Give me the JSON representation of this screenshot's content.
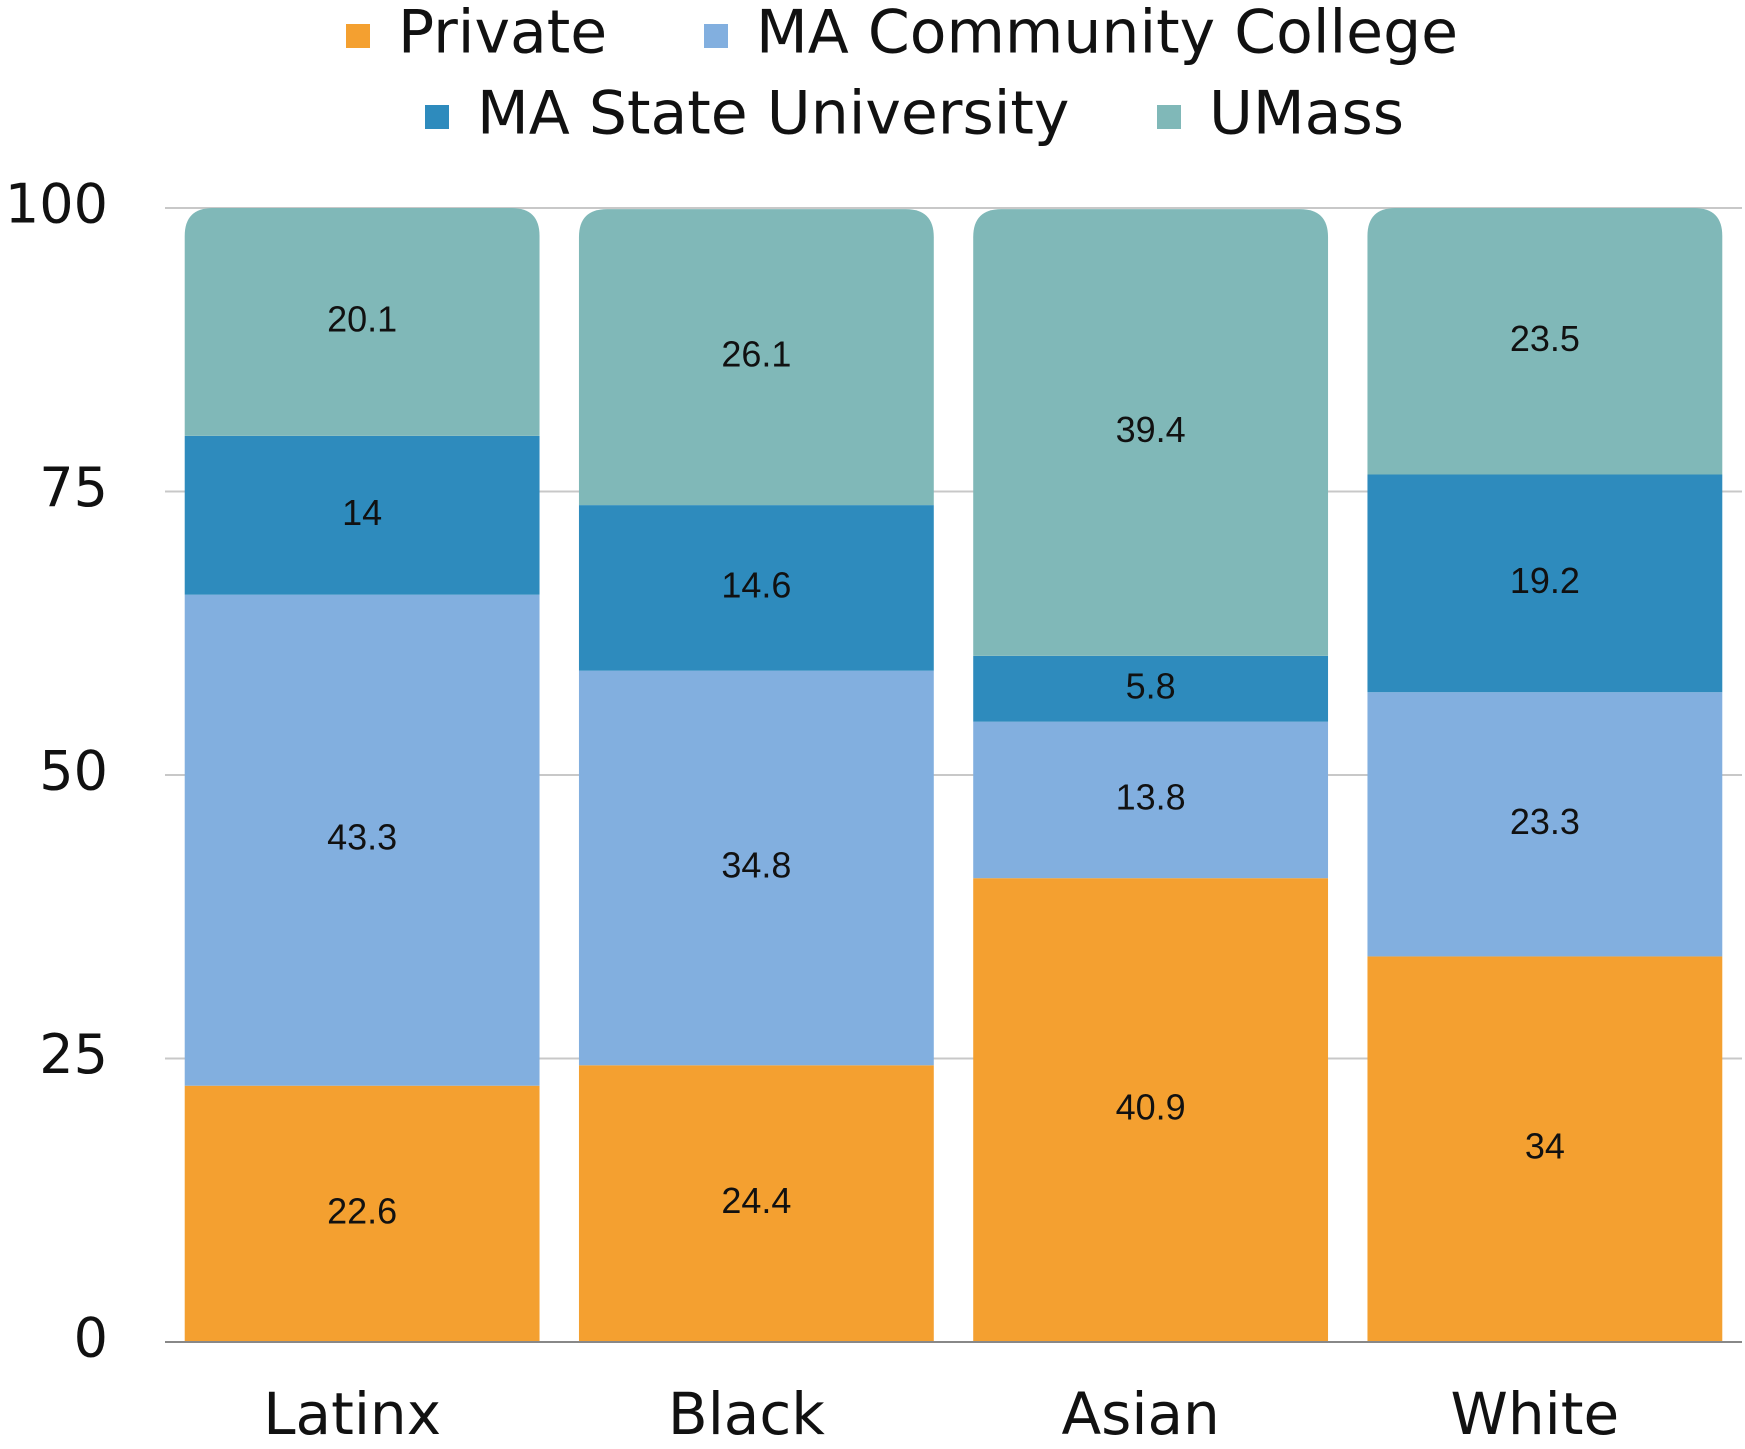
{
  "chart_data": {
    "type": "stacked_bar",
    "categories": [
      "Latinx",
      "Black",
      "Asian",
      "White"
    ],
    "series": [
      {
        "name": "Private",
        "color": "#f4a030",
        "values": [
          22.6,
          24.4,
          40.9,
          34
        ]
      },
      {
        "name": "MA Community College",
        "color": "#82afdf",
        "values": [
          43.3,
          34.8,
          13.8,
          23.3
        ]
      },
      {
        "name": "MA State University",
        "color": "#2e8bbd",
        "values": [
          14,
          14.6,
          5.8,
          19.2
        ]
      },
      {
        "name": "UMass",
        "color": "#80b8b8",
        "values": [
          20.1,
          26.1,
          39.4,
          23.5
        ]
      }
    ],
    "ylim": [
      0,
      100
    ],
    "yticks": [
      0,
      25,
      50,
      75,
      100
    ],
    "grid": true,
    "legend": "top"
  }
}
